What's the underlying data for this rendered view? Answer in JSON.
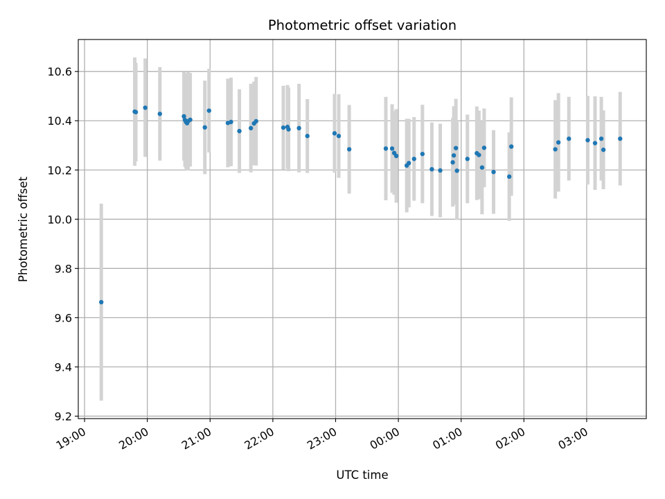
{
  "chart_data": {
    "type": "scatter",
    "title": "Photometric offset variation",
    "xlabel": "UTC time",
    "ylabel": "Photometric offset",
    "xlim": [
      "18:54",
      "03:57"
    ],
    "ylim": [
      9.19,
      10.73
    ],
    "x_ticks": [
      "19:00",
      "20:00",
      "21:00",
      "22:00",
      "23:00",
      "00:00",
      "01:00",
      "02:00",
      "03:00"
    ],
    "y_ticks": [
      9.2,
      9.4,
      9.6,
      9.8,
      10.0,
      10.2,
      10.4,
      10.6
    ],
    "grid": true,
    "colors": {
      "marker": "#1f77b4",
      "error_bar": "#d3d3d3",
      "grid": "#b0b0b0"
    },
    "series": [
      {
        "x": [
          "19:16",
          "19:48",
          "19:49",
          "19:58",
          "20:12",
          "20:35",
          "20:36",
          "20:37",
          "20:38",
          "20:39",
          "20:41",
          "20:55",
          "20:59",
          "21:17",
          "21:20",
          "21:28",
          "21:39",
          "21:42",
          "21:44",
          "22:10",
          "22:14",
          "22:15",
          "22:25",
          "22:33",
          "22:59",
          "23:03",
          "23:13",
          "23:48",
          "23:54",
          "23:56",
          "23:58",
          "24:08",
          "24:10",
          "24:15",
          "24:23",
          "24:32",
          "24:40",
          "24:52",
          "24:53",
          "24:55",
          "24:56",
          "25:06",
          "25:15",
          "25:17",
          "25:20",
          "25:22",
          "25:31",
          "25:46",
          "25:48",
          "26:30",
          "26:33",
          "26:43",
          "27:01",
          "27:08",
          "27:14",
          "27:16",
          "27:32"
        ],
        "y": [
          9.663,
          10.437,
          10.435,
          10.453,
          10.428,
          10.418,
          10.403,
          10.395,
          10.39,
          10.398,
          10.404,
          10.373,
          10.441,
          10.391,
          10.395,
          10.358,
          10.37,
          10.389,
          10.398,
          10.372,
          10.375,
          10.365,
          10.37,
          10.338,
          10.349,
          10.338,
          10.284,
          10.287,
          10.287,
          10.269,
          10.257,
          10.218,
          10.228,
          10.245,
          10.265,
          10.203,
          10.198,
          10.231,
          10.259,
          10.289,
          10.197,
          10.245,
          10.268,
          10.261,
          10.21,
          10.29,
          10.192,
          10.173,
          10.295,
          10.284,
          10.312,
          10.327,
          10.321,
          10.309,
          10.327,
          10.282,
          10.327
        ],
        "err": [
          0.4,
          0.22,
          0.2,
          0.2,
          0.19,
          0.18,
          0.19,
          0.19,
          0.19,
          0.2,
          0.19,
          0.19,
          0.17,
          0.18,
          0.18,
          0.17,
          0.18,
          0.17,
          0.18,
          0.17,
          0.17,
          0.17,
          0.18,
          0.15,
          0.16,
          0.17,
          0.18,
          0.21,
          0.18,
          0.17,
          0.19,
          0.19,
          0.18,
          0.17,
          0.2,
          0.19,
          0.19,
          0.18,
          0.2,
          0.2,
          0.2,
          0.18,
          0.19,
          0.18,
          0.19,
          0.16,
          0.17,
          0.18,
          0.2,
          0.2,
          0.2,
          0.17,
          0.18,
          0.19,
          0.17,
          0.16,
          0.19
        ]
      }
    ]
  }
}
